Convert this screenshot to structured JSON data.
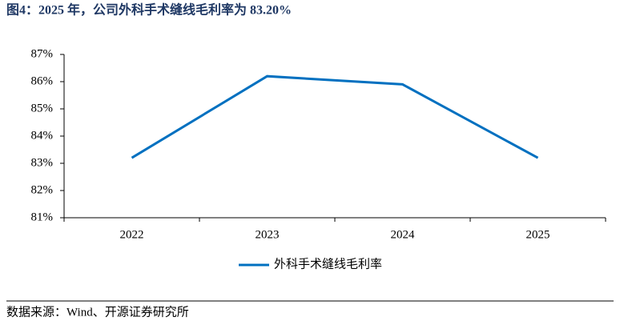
{
  "title": "图4：2025 年，公司外科手术缝线毛利率为 83.20%",
  "chart_data": {
    "type": "line",
    "categories": [
      "2022",
      "2023",
      "2024",
      "2025"
    ],
    "series": [
      {
        "name": "外科手术缝线毛利率",
        "color": "#0070c0",
        "values": [
          83.2,
          86.2,
          85.9,
          83.2
        ]
      }
    ],
    "ylim": [
      81,
      87
    ],
    "yticks": [
      {
        "value": 81,
        "label": "81%"
      },
      {
        "value": 82,
        "label": "82%"
      },
      {
        "value": 83,
        "label": "83%"
      },
      {
        "value": 84,
        "label": "84%"
      },
      {
        "value": 85,
        "label": "85%"
      },
      {
        "value": 86,
        "label": "86%"
      },
      {
        "value": 87,
        "label": "87%"
      }
    ],
    "legend": "bottom"
  },
  "source": "数据来源：Wind、开源证券研究所"
}
